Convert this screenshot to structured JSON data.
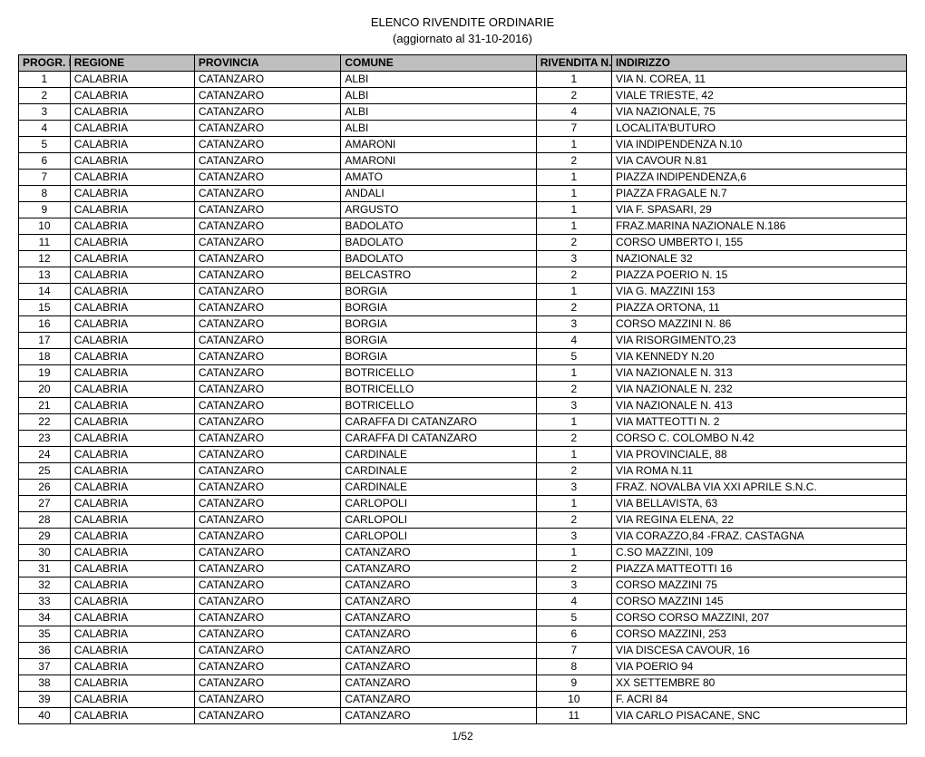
{
  "title": "ELENCO RIVENDITE ORDINARIE",
  "subtitle": "(aggiornato al 31-10-2016)",
  "footer": "1/52",
  "table": {
    "columns": {
      "progr": "PROGR. ELENCO",
      "regione": "REGIONE",
      "provincia": "PROVINCIA",
      "comune": "COMUNE",
      "rivendita": "RIVENDITA N.",
      "indirizzo": "INDIRIZZO"
    },
    "header_bg": "#bfbfbf",
    "border_color": "#000000",
    "font_size_pt": 9,
    "rows": [
      {
        "n": "1",
        "regione": "CALABRIA",
        "provincia": "CATANZARO",
        "comune": "ALBI",
        "riv": "1",
        "ind": "VIA N. COREA, 11"
      },
      {
        "n": "2",
        "regione": "CALABRIA",
        "provincia": "CATANZARO",
        "comune": "ALBI",
        "riv": "2",
        "ind": "VIALE TRIESTE, 42"
      },
      {
        "n": "3",
        "regione": "CALABRIA",
        "provincia": "CATANZARO",
        "comune": "ALBI",
        "riv": "4",
        "ind": "VIA NAZIONALE, 75"
      },
      {
        "n": "4",
        "regione": "CALABRIA",
        "provincia": "CATANZARO",
        "comune": "ALBI",
        "riv": "7",
        "ind": "LOCALITA'BUTURO"
      },
      {
        "n": "5",
        "regione": "CALABRIA",
        "provincia": "CATANZARO",
        "comune": "AMARONI",
        "riv": "1",
        "ind": "VIA INDIPENDENZA N.10"
      },
      {
        "n": "6",
        "regione": "CALABRIA",
        "provincia": "CATANZARO",
        "comune": "AMARONI",
        "riv": "2",
        "ind": "VIA CAVOUR N.81"
      },
      {
        "n": "7",
        "regione": "CALABRIA",
        "provincia": "CATANZARO",
        "comune": "AMATO",
        "riv": "1",
        "ind": "PIAZZA INDIPENDENZA,6"
      },
      {
        "n": "8",
        "regione": "CALABRIA",
        "provincia": "CATANZARO",
        "comune": "ANDALI",
        "riv": "1",
        "ind": "PIAZZA FRAGALE N.7"
      },
      {
        "n": "9",
        "regione": "CALABRIA",
        "provincia": "CATANZARO",
        "comune": "ARGUSTO",
        "riv": "1",
        "ind": "VIA F. SPASARI, 29"
      },
      {
        "n": "10",
        "regione": "CALABRIA",
        "provincia": "CATANZARO",
        "comune": "BADOLATO",
        "riv": "1",
        "ind": "FRAZ.MARINA NAZIONALE  N.186"
      },
      {
        "n": "11",
        "regione": "CALABRIA",
        "provincia": "CATANZARO",
        "comune": "BADOLATO",
        "riv": "2",
        "ind": "CORSO UMBERTO I, 155"
      },
      {
        "n": "12",
        "regione": "CALABRIA",
        "provincia": "CATANZARO",
        "comune": "BADOLATO",
        "riv": "3",
        "ind": "NAZIONALE 32"
      },
      {
        "n": "13",
        "regione": "CALABRIA",
        "provincia": "CATANZARO",
        "comune": "BELCASTRO",
        "riv": "2",
        "ind": "PIAZZA POERIO N. 15"
      },
      {
        "n": "14",
        "regione": "CALABRIA",
        "provincia": "CATANZARO",
        "comune": "BORGIA",
        "riv": "1",
        "ind": "VIA G. MAZZINI 153"
      },
      {
        "n": "15",
        "regione": "CALABRIA",
        "provincia": "CATANZARO",
        "comune": "BORGIA",
        "riv": "2",
        "ind": "PIAZZA ORTONA, 11"
      },
      {
        "n": "16",
        "regione": "CALABRIA",
        "provincia": "CATANZARO",
        "comune": "BORGIA",
        "riv": "3",
        "ind": "CORSO MAZZINI N. 86"
      },
      {
        "n": "17",
        "regione": "CALABRIA",
        "provincia": "CATANZARO",
        "comune": "BORGIA",
        "riv": "4",
        "ind": "VIA RISORGIMENTO,23"
      },
      {
        "n": "18",
        "regione": "CALABRIA",
        "provincia": "CATANZARO",
        "comune": "BORGIA",
        "riv": "5",
        "ind": "VIA KENNEDY N.20"
      },
      {
        "n": "19",
        "regione": "CALABRIA",
        "provincia": "CATANZARO",
        "comune": "BOTRICELLO",
        "riv": "1",
        "ind": "VIA NAZIONALE N. 313"
      },
      {
        "n": "20",
        "regione": "CALABRIA",
        "provincia": "CATANZARO",
        "comune": "BOTRICELLO",
        "riv": "2",
        "ind": "VIA NAZIONALE N. 232"
      },
      {
        "n": "21",
        "regione": "CALABRIA",
        "provincia": "CATANZARO",
        "comune": "BOTRICELLO",
        "riv": "3",
        "ind": "VIA NAZIONALE N. 413"
      },
      {
        "n": "22",
        "regione": "CALABRIA",
        "provincia": "CATANZARO",
        "comune": "CARAFFA DI CATANZARO",
        "riv": "1",
        "ind": "VIA MATTEOTTI N. 2"
      },
      {
        "n": "23",
        "regione": "CALABRIA",
        "provincia": "CATANZARO",
        "comune": "CARAFFA DI CATANZARO",
        "riv": "2",
        "ind": "CORSO C. COLOMBO N.42"
      },
      {
        "n": "24",
        "regione": "CALABRIA",
        "provincia": "CATANZARO",
        "comune": "CARDINALE",
        "riv": "1",
        "ind": "VIA PROVINCIALE, 88"
      },
      {
        "n": "25",
        "regione": "CALABRIA",
        "provincia": "CATANZARO",
        "comune": "CARDINALE",
        "riv": "2",
        "ind": "VIA ROMA N.11"
      },
      {
        "n": "26",
        "regione": "CALABRIA",
        "provincia": "CATANZARO",
        "comune": "CARDINALE",
        "riv": "3",
        "ind": "FRAZ. NOVALBA VIA XXI APRILE S.N.C."
      },
      {
        "n": "27",
        "regione": "CALABRIA",
        "provincia": "CATANZARO",
        "comune": "CARLOPOLI",
        "riv": "1",
        "ind": "VIA BELLAVISTA, 63"
      },
      {
        "n": "28",
        "regione": "CALABRIA",
        "provincia": "CATANZARO",
        "comune": "CARLOPOLI",
        "riv": "2",
        "ind": "VIA REGINA ELENA, 22"
      },
      {
        "n": "29",
        "regione": "CALABRIA",
        "provincia": "CATANZARO",
        "comune": "CARLOPOLI",
        "riv": "3",
        "ind": "VIA CORAZZO,84 -FRAZ. CASTAGNA"
      },
      {
        "n": "30",
        "regione": "CALABRIA",
        "provincia": "CATANZARO",
        "comune": "CATANZARO",
        "riv": "1",
        "ind": "C.SO MAZZINI, 109"
      },
      {
        "n": "31",
        "regione": "CALABRIA",
        "provincia": "CATANZARO",
        "comune": "CATANZARO",
        "riv": "2",
        "ind": "PIAZZA MATTEOTTI 16"
      },
      {
        "n": "32",
        "regione": "CALABRIA",
        "provincia": "CATANZARO",
        "comune": "CATANZARO",
        "riv": "3",
        "ind": "CORSO MAZZINI 75"
      },
      {
        "n": "33",
        "regione": "CALABRIA",
        "provincia": "CATANZARO",
        "comune": "CATANZARO",
        "riv": "4",
        "ind": "CORSO MAZZINI 145"
      },
      {
        "n": "34",
        "regione": "CALABRIA",
        "provincia": "CATANZARO",
        "comune": "CATANZARO",
        "riv": "5",
        "ind": "CORSO CORSO MAZZINI, 207"
      },
      {
        "n": "35",
        "regione": "CALABRIA",
        "provincia": "CATANZARO",
        "comune": "CATANZARO",
        "riv": "6",
        "ind": "CORSO  MAZZINI, 253"
      },
      {
        "n": "36",
        "regione": "CALABRIA",
        "provincia": "CATANZARO",
        "comune": "CATANZARO",
        "riv": "7",
        "ind": "VIA DISCESA CAVOUR, 16"
      },
      {
        "n": "37",
        "regione": "CALABRIA",
        "provincia": "CATANZARO",
        "comune": "CATANZARO",
        "riv": "8",
        "ind": "VIA  POERIO 94"
      },
      {
        "n": "38",
        "regione": "CALABRIA",
        "provincia": "CATANZARO",
        "comune": "CATANZARO",
        "riv": "9",
        "ind": "XX SETTEMBRE 80"
      },
      {
        "n": "39",
        "regione": "CALABRIA",
        "provincia": "CATANZARO",
        "comune": "CATANZARO",
        "riv": "10",
        "ind": "F. ACRI 84"
      },
      {
        "n": "40",
        "regione": "CALABRIA",
        "provincia": "CATANZARO",
        "comune": "CATANZARO",
        "riv": "11",
        "ind": "VIA CARLO PISACANE, SNC"
      }
    ]
  }
}
